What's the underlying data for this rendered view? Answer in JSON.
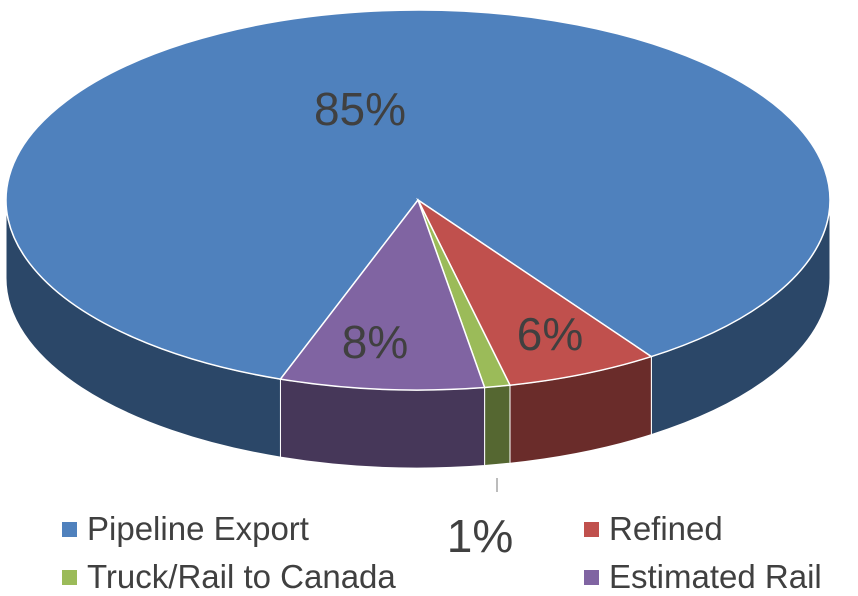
{
  "chart_data": {
    "type": "pie",
    "style": "3d",
    "slices": [
      {
        "name": "Pipeline Export",
        "value": 85,
        "label": "85%",
        "color": "#4f81bd"
      },
      {
        "name": "Refined",
        "value": 6,
        "label": "6%",
        "color": "#c0504d"
      },
      {
        "name": "Truck/Rail to Canada",
        "value": 1,
        "label": "1%",
        "color": "#9bbb59"
      },
      {
        "name": "Estimated Rail",
        "value": 8,
        "label": "8%",
        "color": "#8064a2"
      }
    ],
    "legend_position": "bottom"
  },
  "legend": [
    {
      "name": "Pipeline Export",
      "color": "#4f81bd"
    },
    {
      "name": "Refined",
      "color": "#c0504d"
    },
    {
      "name": "Truck/Rail to Canada",
      "color": "#9bbb59"
    },
    {
      "name": "Estimated Rail",
      "color": "#8064a2"
    }
  ]
}
